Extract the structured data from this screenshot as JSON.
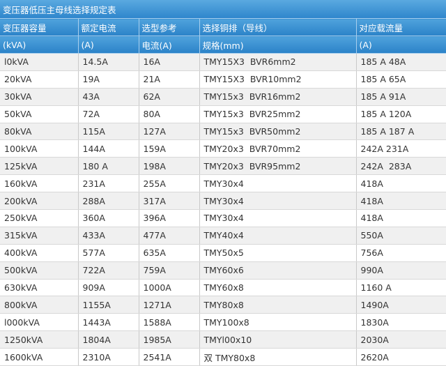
{
  "table": {
    "title": "变压器低压主母线选择规定表",
    "header": [
      [
        "变压器容量",
        "额定电流",
        "选型参考",
        "选择铜排（导线）",
        "对应载流量"
      ],
      [
        "(kVA)",
        "(A)",
        "电流(A)",
        "规格(mm)",
        "(A)"
      ]
    ],
    "rows": [
      [
        "l0kVA",
        "14.5A",
        "16A",
        "TMY15X3  BVR6mm2",
        "185 A 48A"
      ],
      [
        "20kVA",
        "19A",
        "21A",
        "TMY15X3  BVR10mm2",
        "185 A 65A"
      ],
      [
        "30kVA",
        "43A",
        "62A",
        "TMY15x3  BVR16mm2",
        "185 A 91A"
      ],
      [
        "50kVA",
        "72A",
        "80A",
        "TMY15x3  BVR25mm2",
        "185 A 120A"
      ],
      [
        "80kVA",
        "115A",
        "127A",
        "TMY15x3  BVR50mm2",
        "185 A 187 A"
      ],
      [
        "100kVA",
        "144A",
        "159A",
        "TMY20x3  BVR70mm2",
        "242A 231A"
      ],
      [
        "125kVA",
        "180 A",
        "198A",
        "TMY20x3  BVR95mm2",
        "242A  283A"
      ],
      [
        "160kVA",
        "231A",
        "255A",
        "TMY30x4",
        "418A"
      ],
      [
        "200kVA",
        "288A",
        "317A",
        "TMY30x4",
        "418A"
      ],
      [
        "250kVA",
        "360A",
        "396A",
        "TMY30x4",
        "418A"
      ],
      [
        "315kVA",
        "433A",
        "477A",
        "TMY40x4",
        "550A"
      ],
      [
        "400kVA",
        "577A",
        "635A",
        "TMY50x5",
        "756A"
      ],
      [
        "500kVA",
        "722A",
        "759A",
        "TMY60x6",
        "990A"
      ],
      [
        "630kVA",
        "909A",
        "1000A",
        "TMY60x8",
        "1160 A"
      ],
      [
        "800kVA",
        "1155A",
        "1271A",
        "TMY80x8",
        "1490A"
      ],
      [
        "l000kVA",
        "1443A",
        "1588A",
        "TMY100x8",
        "1830A"
      ],
      [
        "1250kVA",
        "1804A",
        "1985A",
        "TMYl00x10",
        "2030A"
      ],
      [
        "1600kVA",
        "2310A",
        "2541A",
        "双 TMY80x8",
        "2620A"
      ]
    ]
  }
}
